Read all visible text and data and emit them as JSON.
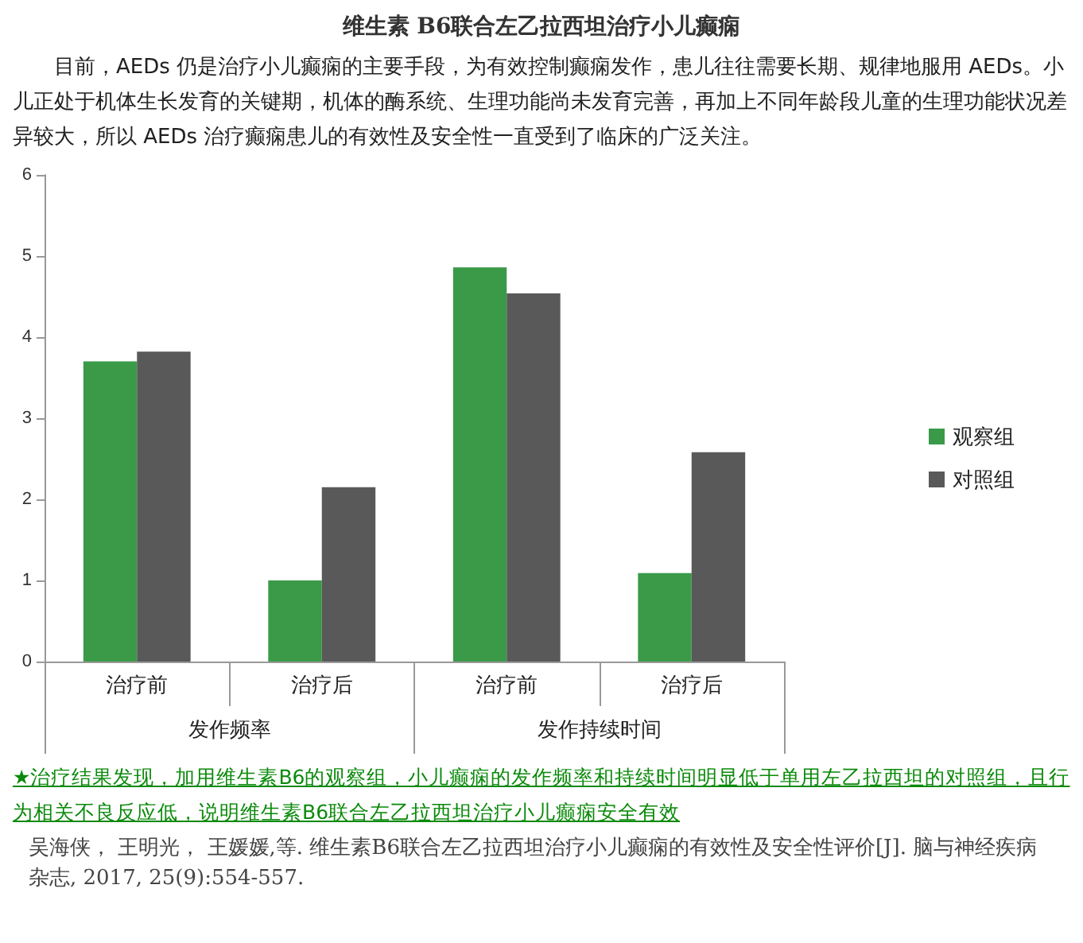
{
  "chart_data": {
    "type": "bar",
    "title": "维生素 B6联合左乙拉西坦治疗小儿癫痫",
    "subtitle": "目前，AEDs 仍是治疗小儿癫痫的主要手段，为有效控制癫痫发作，患儿往往需要长期、规律地服用 AEDs。小儿正处于机体生长发育的关键期，机体的酶系统、生理功能尚未发育完善，再加上不同年龄段儿童的生理功能状况差异较大，所以 AEDs 治疗癫痫患儿的有效性及安全性一直受到了临床的广泛关注。",
    "categories": [
      "治疗前",
      "治疗后",
      "治疗前",
      "治疗后"
    ],
    "annotations": [
      "发作频率",
      "发作持续时间",
      "★治疗结果发现，加用维生素B6的观察组，小儿癫痫的发作频率和持续时间明显低于单用左乙拉西坦的对照组，且行为相关不良反应低，说明维生素B6联合左乙拉西坦治疗小儿癫痫安全有效",
      "吴海侠， 王明光， 王媛媛,等. 维生素B6联合左乙拉西坦治疗小儿癫痫的有效性及安全性评价[J]. 脑与神经疾病杂志, 2017, 25(9):554-557."
    ],
    "series": [
      {
        "name": "观察组",
        "color": "#3a9a48",
        "values": [
          3.7,
          1.0,
          4.86,
          1.09
        ]
      },
      {
        "name": "对照组",
        "color": "#595959",
        "values": [
          3.82,
          2.15,
          4.54,
          2.58
        ]
      }
    ],
    "ylim": [
      0,
      6
    ],
    "yticks": [
      0,
      1,
      2,
      3,
      4,
      5,
      6
    ],
    "grid": false,
    "legend": "right"
  }
}
